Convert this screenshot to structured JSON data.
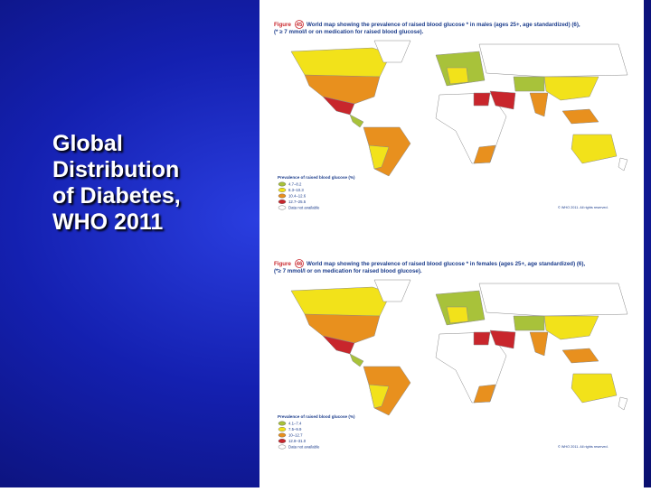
{
  "title_lines": [
    "Global",
    "Distribution",
    "of Diabetes,",
    "WHO 2011"
  ],
  "maps": [
    {
      "figure_label": "Figure",
      "figure_number": "45",
      "caption_lines": [
        "World map showing the prevalence of raised blood glucose * in males (ages 25+, age standardized) (6),",
        "(* ≥ 7 mmol/l or on medication for raised blood glucose)."
      ],
      "legend": {
        "title": "Prevalence of raised blood glucose (%)",
        "items": [
          {
            "label": "4.7–8.2",
            "color": "#a8c23a"
          },
          {
            "label": "8.3–10.3",
            "color": "#f2e21a"
          },
          {
            "label": "10.4–12.6",
            "color": "#e8901e"
          },
          {
            "label": "12.7–25.5",
            "color": "#c8262c"
          },
          {
            "label": "Data not available",
            "color": "#ffffff"
          }
        ]
      },
      "copyright": "© WHO 2011. All rights reserved."
    },
    {
      "figure_label": "Figure",
      "figure_number": "46",
      "caption_lines": [
        "World map showing the prevalence of raised blood glucose * in females (ages 25+, age standardized) (6),",
        "(*≥ 7 mmol/l or on medication for raised blood glucose)."
      ],
      "legend": {
        "title": "Prevalence of raised blood glucose (%)",
        "items": [
          {
            "label": "4.1–7.4",
            "color": "#a8c23a"
          },
          {
            "label": "7.5–9.9",
            "color": "#f2e21a"
          },
          {
            "label": "10–12.7",
            "color": "#e8901e"
          },
          {
            "label": "12.8–31.0",
            "color": "#c8262c"
          },
          {
            "label": "Data not available",
            "color": "#ffffff"
          }
        ]
      },
      "copyright": "© WHO 2011. All rights reserved."
    }
  ]
}
